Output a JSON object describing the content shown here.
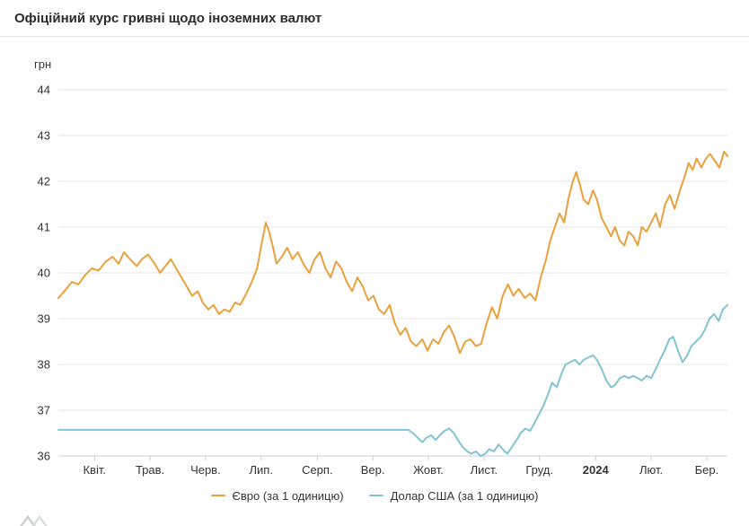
{
  "header": {
    "title": "Офіційний курс гривні щодо іноземних валют"
  },
  "chart_data": {
    "type": "line",
    "title": "Офіційний курс гривні щодо іноземних валют",
    "y_axis_title": "грн",
    "ylim": [
      36,
      44
    ],
    "grid": true,
    "legend_position": "bottom-center",
    "y_ticks": [
      36,
      37,
      38,
      39,
      40,
      41,
      42,
      43,
      44
    ],
    "x_ticks": [
      {
        "label": "Квіт.",
        "f": 0.054
      },
      {
        "label": "Трав.",
        "f": 0.137
      },
      {
        "label": "Черв.",
        "f": 0.22
      },
      {
        "label": "Лип.",
        "f": 0.303
      },
      {
        "label": "Серп.",
        "f": 0.387
      },
      {
        "label": "Вер.",
        "f": 0.47
      },
      {
        "label": "Жовт.",
        "f": 0.553
      },
      {
        "label": "Лист.",
        "f": 0.636
      },
      {
        "label": "Груд.",
        "f": 0.719
      },
      {
        "label": "2024",
        "f": 0.803,
        "bold": true
      },
      {
        "label": "Лют.",
        "f": 0.886
      },
      {
        "label": "Бер.",
        "f": 0.969
      }
    ],
    "series": [
      {
        "name": "Євро (за 1 одиницю)",
        "color": "#EAA13C",
        "points": [
          [
            0.0,
            39.45
          ],
          [
            0.009,
            39.6
          ],
          [
            0.02,
            39.8
          ],
          [
            0.03,
            39.75
          ],
          [
            0.04,
            39.95
          ],
          [
            0.05,
            40.1
          ],
          [
            0.06,
            40.05
          ],
          [
            0.071,
            40.25
          ],
          [
            0.081,
            40.35
          ],
          [
            0.09,
            40.2
          ],
          [
            0.098,
            40.45
          ],
          [
            0.107,
            40.3
          ],
          [
            0.117,
            40.15
          ],
          [
            0.125,
            40.3
          ],
          [
            0.134,
            40.4
          ],
          [
            0.144,
            40.2
          ],
          [
            0.152,
            40.0
          ],
          [
            0.16,
            40.15
          ],
          [
            0.168,
            40.3
          ],
          [
            0.176,
            40.1
          ],
          [
            0.184,
            39.9
          ],
          [
            0.192,
            39.7
          ],
          [
            0.2,
            39.5
          ],
          [
            0.208,
            39.6
          ],
          [
            0.216,
            39.35
          ],
          [
            0.224,
            39.2
          ],
          [
            0.232,
            39.3
          ],
          [
            0.24,
            39.1
          ],
          [
            0.248,
            39.2
          ],
          [
            0.256,
            39.15
          ],
          [
            0.264,
            39.35
          ],
          [
            0.272,
            39.3
          ],
          [
            0.281,
            39.55
          ],
          [
            0.289,
            39.8
          ],
          [
            0.297,
            40.1
          ],
          [
            0.302,
            40.5
          ],
          [
            0.306,
            40.8
          ],
          [
            0.31,
            41.1
          ],
          [
            0.315,
            40.9
          ],
          [
            0.321,
            40.55
          ],
          [
            0.326,
            40.2
          ],
          [
            0.334,
            40.35
          ],
          [
            0.342,
            40.55
          ],
          [
            0.35,
            40.3
          ],
          [
            0.358,
            40.45
          ],
          [
            0.366,
            40.2
          ],
          [
            0.375,
            40.0
          ],
          [
            0.383,
            40.3
          ],
          [
            0.391,
            40.45
          ],
          [
            0.399,
            40.1
          ],
          [
            0.407,
            39.9
          ],
          [
            0.415,
            40.25
          ],
          [
            0.423,
            40.1
          ],
          [
            0.431,
            39.8
          ],
          [
            0.439,
            39.6
          ],
          [
            0.447,
            39.9
          ],
          [
            0.455,
            39.7
          ],
          [
            0.463,
            39.4
          ],
          [
            0.471,
            39.5
          ],
          [
            0.479,
            39.2
          ],
          [
            0.487,
            39.1
          ],
          [
            0.495,
            39.3
          ],
          [
            0.503,
            38.9
          ],
          [
            0.511,
            38.65
          ],
          [
            0.519,
            38.8
          ],
          [
            0.527,
            38.5
          ],
          [
            0.535,
            38.4
          ],
          [
            0.544,
            38.55
          ],
          [
            0.552,
            38.3
          ],
          [
            0.56,
            38.55
          ],
          [
            0.568,
            38.45
          ],
          [
            0.576,
            38.7
          ],
          [
            0.584,
            38.85
          ],
          [
            0.592,
            38.6
          ],
          [
            0.6,
            38.25
          ],
          [
            0.608,
            38.5
          ],
          [
            0.616,
            38.55
          ],
          [
            0.624,
            38.4
          ],
          [
            0.632,
            38.45
          ],
          [
            0.64,
            38.9
          ],
          [
            0.648,
            39.25
          ],
          [
            0.656,
            39.0
          ],
          [
            0.664,
            39.5
          ],
          [
            0.672,
            39.75
          ],
          [
            0.68,
            39.5
          ],
          [
            0.688,
            39.65
          ],
          [
            0.697,
            39.45
          ],
          [
            0.705,
            39.55
          ],
          [
            0.713,
            39.4
          ],
          [
            0.721,
            39.9
          ],
          [
            0.729,
            40.3
          ],
          [
            0.735,
            40.7
          ],
          [
            0.742,
            41.0
          ],
          [
            0.749,
            41.3
          ],
          [
            0.756,
            41.1
          ],
          [
            0.762,
            41.6
          ],
          [
            0.769,
            42.0
          ],
          [
            0.774,
            42.2
          ],
          [
            0.78,
            41.9
          ],
          [
            0.785,
            41.6
          ],
          [
            0.792,
            41.5
          ],
          [
            0.799,
            41.8
          ],
          [
            0.805,
            41.6
          ],
          [
            0.812,
            41.2
          ],
          [
            0.819,
            41.0
          ],
          [
            0.826,
            40.8
          ],
          [
            0.832,
            41.0
          ],
          [
            0.839,
            40.7
          ],
          [
            0.846,
            40.6
          ],
          [
            0.852,
            40.9
          ],
          [
            0.859,
            40.8
          ],
          [
            0.866,
            40.6
          ],
          [
            0.872,
            41.0
          ],
          [
            0.879,
            40.9
          ],
          [
            0.886,
            41.1
          ],
          [
            0.893,
            41.3
          ],
          [
            0.899,
            41.0
          ],
          [
            0.907,
            41.5
          ],
          [
            0.914,
            41.7
          ],
          [
            0.921,
            41.4
          ],
          [
            0.929,
            41.8
          ],
          [
            0.936,
            42.1
          ],
          [
            0.942,
            42.4
          ],
          [
            0.948,
            42.25
          ],
          [
            0.954,
            42.5
          ],
          [
            0.961,
            42.3
          ],
          [
            0.968,
            42.5
          ],
          [
            0.974,
            42.6
          ],
          [
            0.981,
            42.45
          ],
          [
            0.988,
            42.3
          ],
          [
            0.995,
            42.65
          ],
          [
            1.0,
            42.55
          ]
        ]
      },
      {
        "name": "Долар США (за 1 одиницю)",
        "color": "#82C3D5",
        "points": [
          [
            0.0,
            36.57
          ],
          [
            0.523,
            36.57
          ],
          [
            0.53,
            36.5
          ],
          [
            0.537,
            36.4
          ],
          [
            0.544,
            36.3
          ],
          [
            0.55,
            36.4
          ],
          [
            0.557,
            36.45
          ],
          [
            0.564,
            36.35
          ],
          [
            0.57,
            36.45
          ],
          [
            0.577,
            36.55
          ],
          [
            0.584,
            36.6
          ],
          [
            0.591,
            36.5
          ],
          [
            0.597,
            36.35
          ],
          [
            0.604,
            36.2
          ],
          [
            0.611,
            36.1
          ],
          [
            0.617,
            36.05
          ],
          [
            0.624,
            36.1
          ],
          [
            0.631,
            36.0
          ],
          [
            0.638,
            36.05
          ],
          [
            0.644,
            36.15
          ],
          [
            0.651,
            36.1
          ],
          [
            0.658,
            36.25
          ],
          [
            0.664,
            36.15
          ],
          [
            0.671,
            36.05
          ],
          [
            0.678,
            36.2
          ],
          [
            0.685,
            36.35
          ],
          [
            0.691,
            36.5
          ],
          [
            0.698,
            36.6
          ],
          [
            0.705,
            36.55
          ],
          [
            0.711,
            36.7
          ],
          [
            0.718,
            36.9
          ],
          [
            0.725,
            37.1
          ],
          [
            0.732,
            37.35
          ],
          [
            0.738,
            37.6
          ],
          [
            0.745,
            37.5
          ],
          [
            0.752,
            37.8
          ],
          [
            0.758,
            38.0
          ],
          [
            0.765,
            38.05
          ],
          [
            0.772,
            38.1
          ],
          [
            0.779,
            38.0
          ],
          [
            0.785,
            38.1
          ],
          [
            0.792,
            38.15
          ],
          [
            0.799,
            38.2
          ],
          [
            0.805,
            38.1
          ],
          [
            0.812,
            37.9
          ],
          [
            0.819,
            37.65
          ],
          [
            0.826,
            37.5
          ],
          [
            0.832,
            37.55
          ],
          [
            0.839,
            37.7
          ],
          [
            0.846,
            37.75
          ],
          [
            0.852,
            37.7
          ],
          [
            0.859,
            37.75
          ],
          [
            0.866,
            37.7
          ],
          [
            0.872,
            37.65
          ],
          [
            0.879,
            37.75
          ],
          [
            0.886,
            37.7
          ],
          [
            0.893,
            37.9
          ],
          [
            0.899,
            38.1
          ],
          [
            0.906,
            38.3
          ],
          [
            0.913,
            38.55
          ],
          [
            0.919,
            38.6
          ],
          [
            0.926,
            38.3
          ],
          [
            0.933,
            38.05
          ],
          [
            0.94,
            38.2
          ],
          [
            0.946,
            38.4
          ],
          [
            0.953,
            38.5
          ],
          [
            0.96,
            38.6
          ],
          [
            0.966,
            38.75
          ],
          [
            0.973,
            39.0
          ],
          [
            0.98,
            39.1
          ],
          [
            0.987,
            38.95
          ],
          [
            0.993,
            39.2
          ],
          [
            1.0,
            39.3
          ]
        ]
      }
    ],
    "colors": {
      "grid": "#e6e6e6",
      "axis": "#c9cfd8",
      "tick_label": "#333333"
    }
  }
}
